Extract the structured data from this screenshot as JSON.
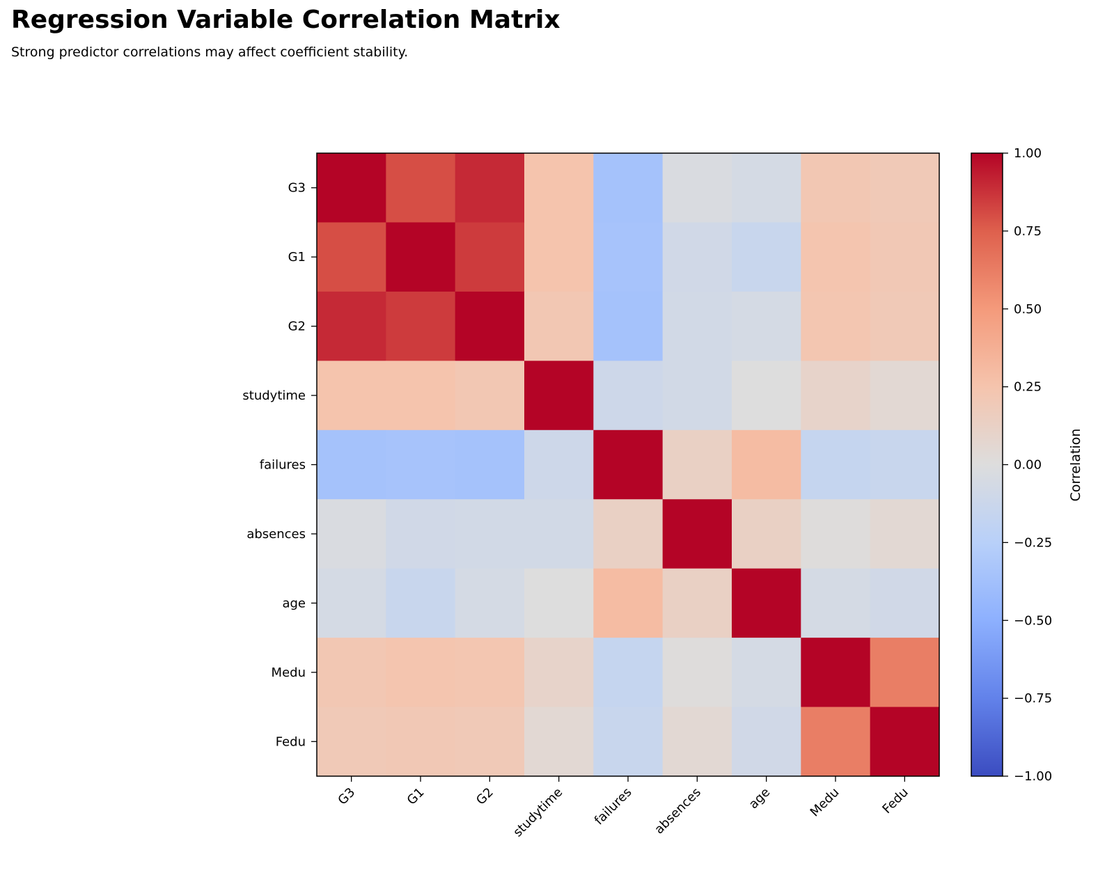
{
  "chart_data": {
    "type": "heatmap",
    "title": "Regression Variable Correlation Matrix",
    "subtitle": "Strong predictor correlations may affect coefficient stability.",
    "rows": [
      "G3",
      "G1",
      "G2",
      "studytime",
      "failures",
      "absences",
      "age",
      "Medu",
      "Fedu"
    ],
    "columns": [
      "G3",
      "G1",
      "G2",
      "studytime",
      "failures",
      "absences",
      "age",
      "Medu",
      "Fedu"
    ],
    "values": [
      [
        1.0,
        0.8,
        0.9,
        0.25,
        -0.36,
        -0.03,
        -0.06,
        0.22,
        0.2
      ],
      [
        0.8,
        1.0,
        0.85,
        0.25,
        -0.35,
        -0.09,
        -0.14,
        0.24,
        0.21
      ],
      [
        0.9,
        0.85,
        1.0,
        0.22,
        -0.36,
        -0.08,
        -0.06,
        0.23,
        0.2
      ],
      [
        0.25,
        0.25,
        0.22,
        1.0,
        -0.11,
        -0.08,
        0.0,
        0.1,
        0.05
      ],
      [
        -0.36,
        -0.35,
        -0.36,
        -0.11,
        1.0,
        0.13,
        0.3,
        -0.16,
        -0.14
      ],
      [
        -0.03,
        -0.09,
        -0.08,
        -0.08,
        0.13,
        1.0,
        0.13,
        0.01,
        0.05
      ],
      [
        -0.06,
        -0.14,
        -0.06,
        0.0,
        0.3,
        0.13,
        1.0,
        -0.06,
        -0.09
      ],
      [
        0.22,
        0.24,
        0.23,
        0.1,
        -0.16,
        0.01,
        -0.06,
        1.0,
        0.62
      ],
      [
        0.2,
        0.21,
        0.2,
        0.05,
        -0.14,
        0.05,
        -0.09,
        0.62,
        1.0
      ]
    ],
    "colorbar": {
      "label": "Correlation",
      "range": [
        -1.0,
        1.0
      ],
      "ticks": [
        "1.00",
        "0.75",
        "0.50",
        "0.25",
        "0.00",
        "−0.25",
        "−0.50",
        "−0.75",
        "−1.00"
      ],
      "tick_values": [
        1.0,
        0.75,
        0.5,
        0.25,
        0.0,
        -0.25,
        -0.5,
        -0.75,
        -1.0
      ],
      "colormap": "coolwarm"
    },
    "grid": false
  }
}
